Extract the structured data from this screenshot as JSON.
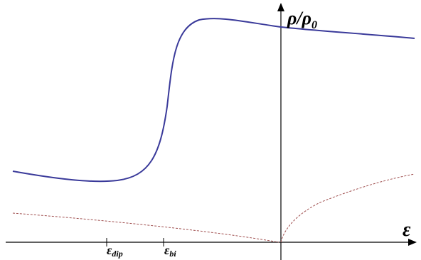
{
  "axes": {
    "x_label": "ε",
    "y_label": {
      "main": "ρ/ρ",
      "sub": "0"
    }
  },
  "ticks": [
    {
      "main": "ε",
      "sub": "dip"
    },
    {
      "main": "ε",
      "sub": "bi"
    }
  ]
}
